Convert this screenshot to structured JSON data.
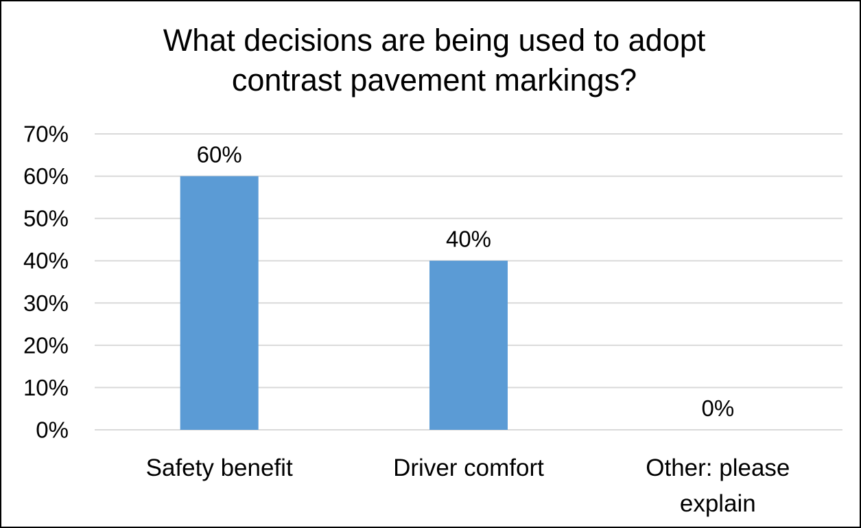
{
  "chart_data": {
    "type": "bar",
    "title": "What decisions are being used to adopt contrast pavement markings?",
    "title_lines": [
      "What decisions are being used to adopt",
      "contrast pavement markings?"
    ],
    "categories": [
      "Safety benefit",
      "Driver comfort",
      "Other: please explain"
    ],
    "category_label_lines": [
      [
        "Safety benefit"
      ],
      [
        "Driver comfort"
      ],
      [
        "Other: please",
        "explain"
      ]
    ],
    "values": [
      60,
      40,
      0
    ],
    "data_labels": [
      "60%",
      "40%",
      "0%"
    ],
    "ylim": [
      0,
      70
    ],
    "yticks": [
      0,
      10,
      20,
      30,
      40,
      50,
      60,
      70
    ],
    "ytick_labels": [
      "0%",
      "10%",
      "20%",
      "30%",
      "40%",
      "50%",
      "60%",
      "70%"
    ],
    "xlabel": "",
    "ylabel": "",
    "grid": true,
    "legend": "none",
    "colors": {
      "bar": "#5B9BD5",
      "grid": "#D9D9D9",
      "axis": "#D9D9D9",
      "text": "#000000"
    }
  }
}
